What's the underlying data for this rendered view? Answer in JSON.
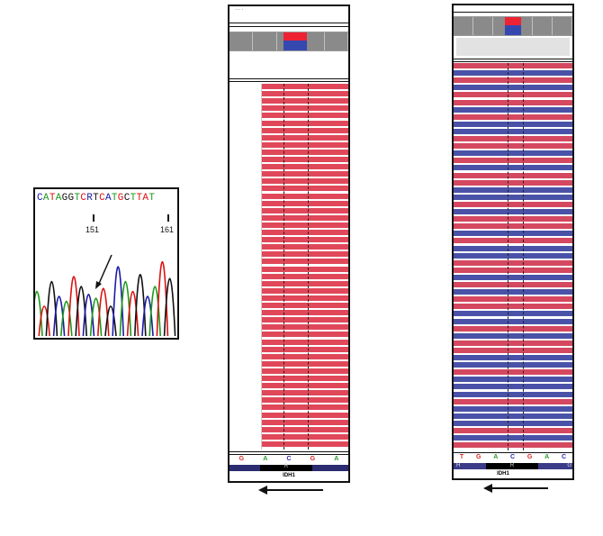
{
  "chromatogram": {
    "sequence": "CATAGGTCRTCATGCTTAT",
    "sequence_colors": [
      "#1a1aa8",
      "#1a9a1a",
      "#d11",
      "#1a9a1a",
      "#111",
      "#111",
      "#1a9a1a",
      "#d11",
      "#1a1aa8",
      "#111",
      "#d11",
      "#1a1aa8",
      "#1a9a1a",
      "#d11",
      "#111",
      "#1a9a1a",
      "#d11",
      "#d11",
      "#1a9a1a"
    ],
    "pos_left": "151",
    "pos_right": "161"
  },
  "igv_left": {
    "header_text": "··· ·",
    "ref_bases": [
      "G",
      "A",
      "C",
      "G",
      "A"
    ],
    "ref_colors": [
      "#d22",
      "#2a9a2a",
      "#2a2ab0",
      "#d22",
      "#2a9a2a"
    ],
    "codon": "R",
    "gene": "IDH1",
    "mutation_base": "T"
  },
  "igv_right": {
    "ref_bases": [
      "T",
      "G",
      "A",
      "C",
      "G",
      "A",
      "C"
    ],
    "ref_colors": [
      "#d22",
      "#d22",
      "#2a9a2a",
      "#2a2ab0",
      "#d22",
      "#2a9a2a",
      "#2a2ab0"
    ],
    "codons": [
      "H",
      "R",
      "G"
    ],
    "gene": "IDH1",
    "mutation_base": "T"
  }
}
